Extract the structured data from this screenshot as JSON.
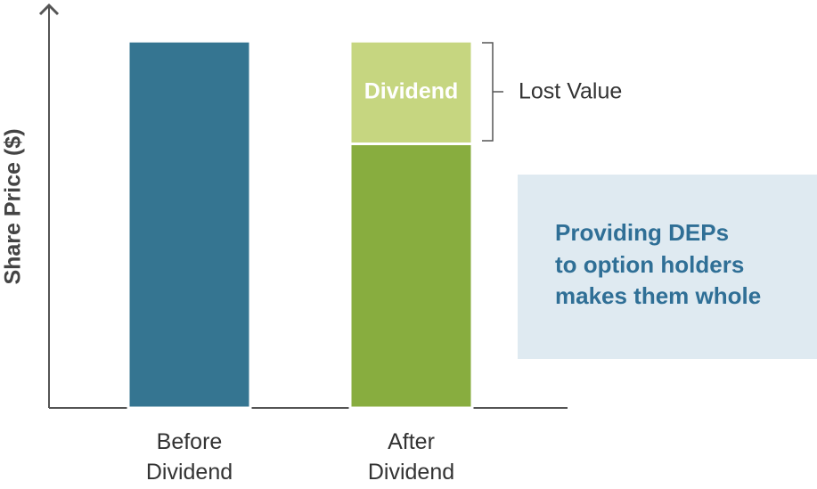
{
  "chart_data": {
    "type": "bar",
    "stacked": true,
    "y_label": "Share Price ($)",
    "categories": [
      "Before Dividend",
      "After Dividend"
    ],
    "series": [
      {
        "colors": [
          "#357591",
          "#88ad3f"
        ],
        "values": [
          100,
          72
        ]
      },
      {
        "name": "Dividend",
        "color": "#c6d680",
        "values": [
          null,
          28
        ]
      }
    ],
    "ylim": [
      0,
      110
    ],
    "annotations": {
      "bracket_label": "Lost Value",
      "callout": [
        "Providing DEPs",
        "to option holders",
        "makes them whole"
      ]
    }
  }
}
